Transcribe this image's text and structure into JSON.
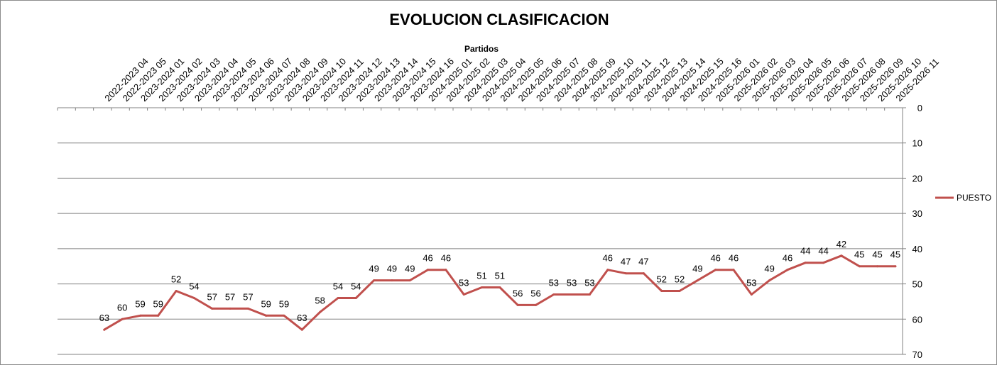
{
  "chart_data": {
    "type": "line",
    "title": "EVOLUCION CLASIFICACION",
    "xlabel": "Partidos",
    "ylabel": "",
    "ylim": [
      0,
      70
    ],
    "y_inverted": true,
    "y_axis_side": "right",
    "x_axis_side": "top",
    "yticks": [
      0,
      10,
      20,
      30,
      40,
      50,
      60,
      70
    ],
    "grid": true,
    "legend_position": "right",
    "categories": [
      "2022-2023 04",
      "2022-2023 05",
      "2023-2024 01",
      "2023-2024 02",
      "2023-2024 03",
      "2023-2024 04",
      "2023-2024 05",
      "2023-2024 06",
      "2023-2024 07",
      "2023-2024 08",
      "2023-2024 09",
      "2023-2024 10",
      "2023-2024 11",
      "2023-2024 12",
      "2023-2024 13",
      "2023-2024 14",
      "2023-2024 15",
      "2023-2024 16",
      "2024-2025 01",
      "2024-2025 02",
      "2024-2025 03",
      "2024-2025 04",
      "2024-2025 05",
      "2024-2025 06",
      "2024-2025 07",
      "2024-2025 08",
      "2024-2025 09",
      "2024-2025 10",
      "2024-2025 11",
      "2024-2025 12",
      "2024-2025 13",
      "2024-2025 14",
      "2024-2025 15",
      "2024-2025 16",
      "2025-2026 01",
      "2025-2026 02",
      "2025-2026 03",
      "2025-2026 04",
      "2025-2026 05",
      "2025-2026 06",
      "2025-2026 07",
      "2025-2026 08",
      "2025-2026 09",
      "2025-2026 10",
      "2025-2026 11"
    ],
    "series": [
      {
        "name": "PUESTO",
        "color": "#c0504d",
        "values": [
          63,
          60,
          59,
          59,
          52,
          54,
          57,
          57,
          57,
          59,
          59,
          63,
          58,
          54,
          54,
          49,
          49,
          49,
          46,
          46,
          53,
          51,
          51,
          56,
          56,
          53,
          53,
          53,
          46,
          47,
          47,
          52,
          52,
          49,
          46,
          46,
          53,
          49,
          46,
          44,
          44,
          42,
          45,
          45,
          45
        ]
      }
    ]
  }
}
